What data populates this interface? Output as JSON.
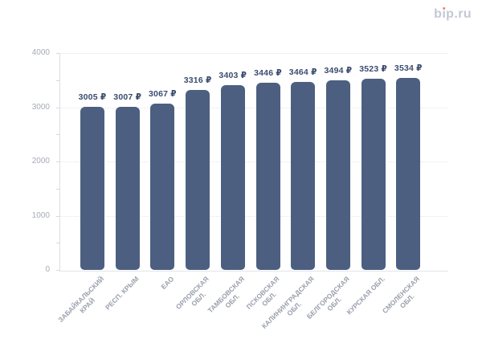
{
  "brand": {
    "logo_text": "bip.ru",
    "logo_color": "#c4c8d5",
    "logo_dot_color": "#f0805d"
  },
  "chart_data": {
    "type": "bar",
    "title": "",
    "xlabel": "",
    "ylabel": "",
    "categories": [
      "ЗАБАЙКАЛЬСКИЙ КРАЙ",
      "РЕСП. КРЫМ",
      "ЕАО",
      "ОРЛОВСКАЯ ОБЛ.",
      "ТАМБОВСКАЯ ОБЛ.",
      "ПСКОВСКАЯ ОБЛ.",
      "КАЛИНИНГРАДСКАЯ ОБЛ.",
      "БЕЛГОРОДСКАЯ ОБЛ.",
      "КУРСКАЯ ОБЛ.",
      "СМОЛЕНСКАЯ ОБЛ."
    ],
    "category_lines": [
      [
        "ЗАБАЙКАЛЬСКИЙ",
        "КРАЙ"
      ],
      [
        "РЕСП. КРЫМ"
      ],
      [
        "ЕАО"
      ],
      [
        "ОРЛОВСКАЯ",
        "ОБЛ."
      ],
      [
        "ТАМБОВСКАЯ",
        "ОБЛ."
      ],
      [
        "ПСКОВСКАЯ",
        "ОБЛ."
      ],
      [
        "КАЛИНИНГРАДСКАЯ",
        "ОБЛ."
      ],
      [
        "БЕЛГОРОДСКАЯ",
        "ОБЛ."
      ],
      [
        "КУРСКАЯ ОБЛ."
      ],
      [
        "СМОЛЕНСКАЯ",
        "ОБЛ."
      ]
    ],
    "values": [
      3005,
      3007,
      3067,
      3316,
      3403,
      3446,
      3464,
      3494,
      3523,
      3534
    ],
    "value_labels": [
      "3005 ₽",
      "3007 ₽",
      "3067 ₽",
      "3316 ₽",
      "3403 ₽",
      "3446 ₽",
      "3464 ₽",
      "3494 ₽",
      "3523 ₽",
      "3534 ₽"
    ],
    "currency": "₽",
    "ylim": [
      0,
      4000
    ],
    "y_tick_labels": [
      "0",
      "1000",
      "2000",
      "3000",
      "4000"
    ],
    "y_ticks": [
      0,
      1000,
      2000,
      3000,
      4000
    ],
    "y_minor_step": 500,
    "grid": "dotted horizontal major gridlines, minor ticks on axis",
    "legend": "none",
    "colors": {
      "bar": "#4c5f80",
      "value_label": "#3a4c70",
      "x_axis_label": "#9aa0ac",
      "y_axis_label": "#a7abb6",
      "axis_line": "#dcdee3",
      "grid_line": "#e3e5ea",
      "background": "#ffffff"
    }
  }
}
